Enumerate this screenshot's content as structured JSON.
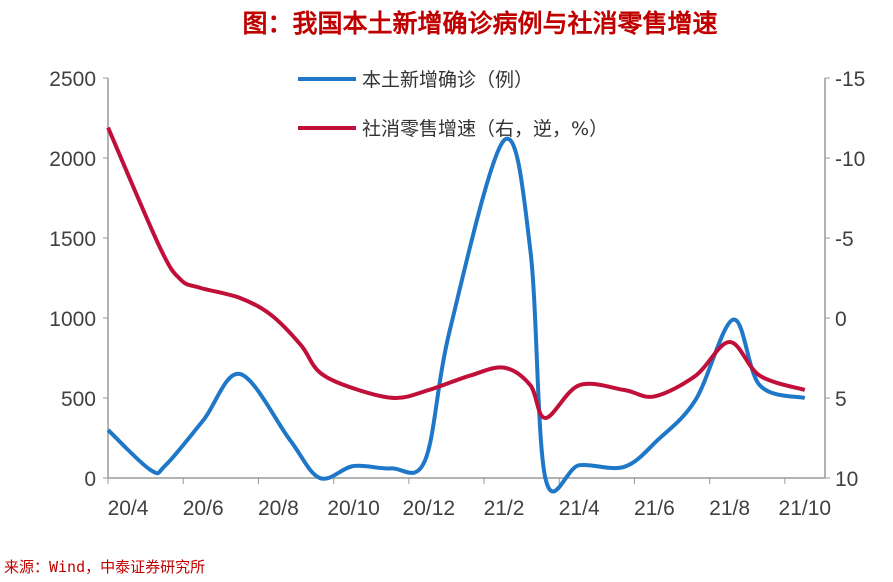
{
  "chart_data": {
    "type": "line",
    "title": "图：我国本土新增确诊病例与社消零售增速",
    "source": "来源：Wind，中泰证券研究所",
    "x_tick_labels": [
      "20/4",
      "20/6",
      "20/8",
      "20/10",
      "20/12",
      "21/2",
      "21/4",
      "21/6",
      "21/8",
      "21/10"
    ],
    "x_note": "x values are months since 20/4 (0 = 20/4)",
    "left_axis": {
      "ticks": [
        "0",
        "500",
        "1000",
        "1500",
        "2000",
        "2500"
      ],
      "range": [
        0,
        2500
      ]
    },
    "right_axis": {
      "ticks": [
        "-15",
        "-10",
        "-5",
        "0",
        "5",
        "10"
      ],
      "range": [
        -15,
        10
      ],
      "inverted": true
    },
    "grid": false,
    "legend_position": "top-center",
    "series": [
      {
        "name": "本土新增确诊（例）",
        "axis": "left",
        "color": "#1F77C8",
        "points": [
          [
            -0.53,
            300
          ],
          [
            0.6,
            50
          ],
          [
            1.0,
            80
          ],
          [
            2.0,
            360
          ],
          [
            2.98,
            650
          ],
          [
            4.3,
            240
          ],
          [
            5.1,
            0
          ],
          [
            6.0,
            75
          ],
          [
            7.0,
            60
          ],
          [
            7.9,
            110
          ],
          [
            8.56,
            925
          ],
          [
            10.0,
            2110
          ],
          [
            10.7,
            1425
          ],
          [
            11.1,
            0
          ],
          [
            12.0,
            80
          ],
          [
            13.2,
            70
          ],
          [
            14.1,
            240
          ],
          [
            15.1,
            490
          ],
          [
            16.1,
            990
          ],
          [
            16.8,
            580
          ],
          [
            18.0,
            500
          ]
        ]
      },
      {
        "name": "社消零售增速（右，逆，%）",
        "axis": "right",
        "color": "#C0103A",
        "points": [
          [
            -0.53,
            -11.9
          ],
          [
            0.85,
            -4.4
          ],
          [
            1.4,
            -2.4
          ],
          [
            1.9,
            -1.9
          ],
          [
            2.98,
            -1.25
          ],
          [
            3.8,
            -0.2
          ],
          [
            4.6,
            1.7
          ],
          [
            5.1,
            3.4
          ],
          [
            6.0,
            4.4
          ],
          [
            7.1,
            5.0
          ],
          [
            8.0,
            4.5
          ],
          [
            9.1,
            3.6
          ],
          [
            10.0,
            3.1
          ],
          [
            10.7,
            4.2
          ],
          [
            11.1,
            6.25
          ],
          [
            12.0,
            4.2
          ],
          [
            13.2,
            4.5
          ],
          [
            14.0,
            4.9
          ],
          [
            15.1,
            3.6
          ],
          [
            16.0,
            1.5
          ],
          [
            16.8,
            3.6
          ],
          [
            18.0,
            4.5
          ]
        ]
      }
    ]
  }
}
